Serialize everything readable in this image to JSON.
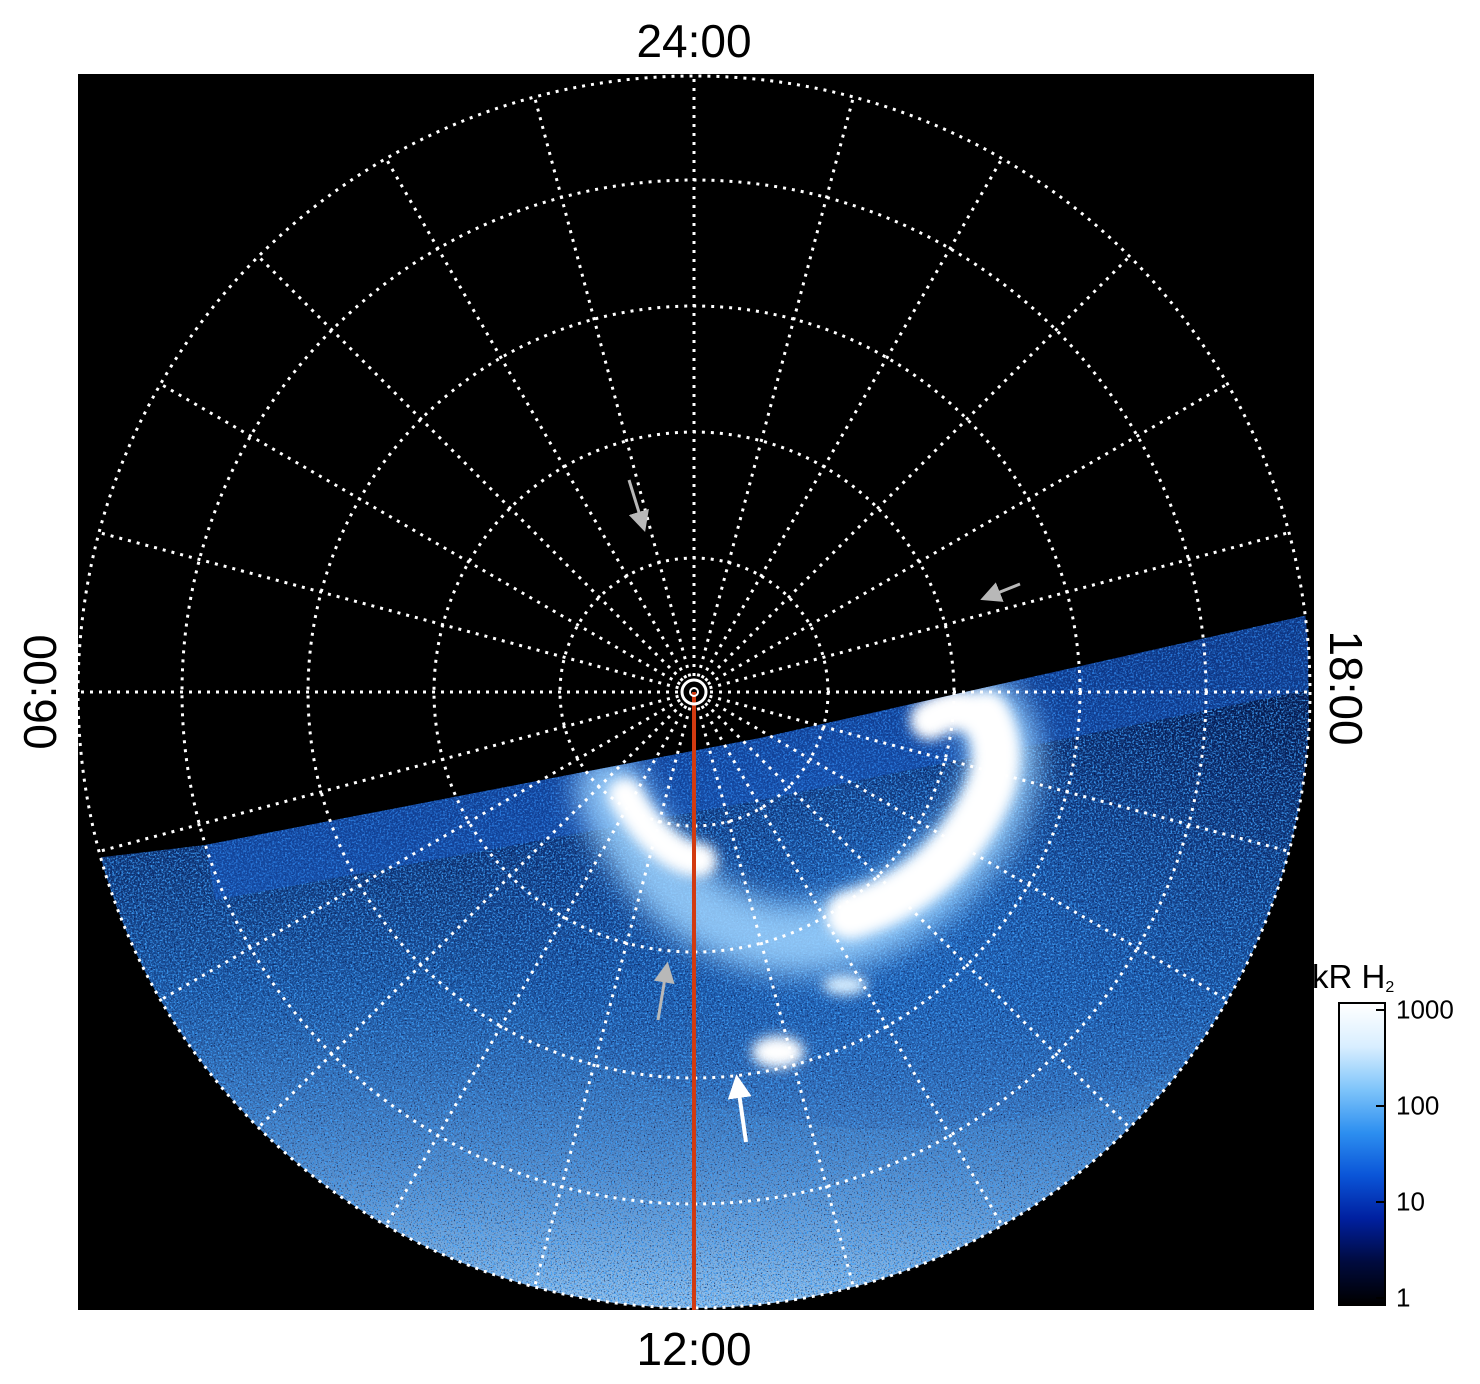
{
  "labels": {
    "top": "24:00",
    "bottom": "12:00",
    "left": "06:00",
    "right": "18:00"
  },
  "colorbar": {
    "title": "kR H",
    "title_sub": "2",
    "ticks": [
      "1000",
      "100",
      "10",
      "1"
    ],
    "colors": [
      "#000000",
      "#000b40",
      "#0020a0",
      "#0a55d8",
      "#2d8ff0",
      "#7ec4fa",
      "#d8eeff",
      "#ffffff"
    ]
  },
  "colors": {
    "background": "#000000",
    "grid": "#ffffff",
    "meridian": "#d23a10",
    "arrow_gray": "#b8b8b8",
    "arrow_white": "#ffffff"
  }
}
